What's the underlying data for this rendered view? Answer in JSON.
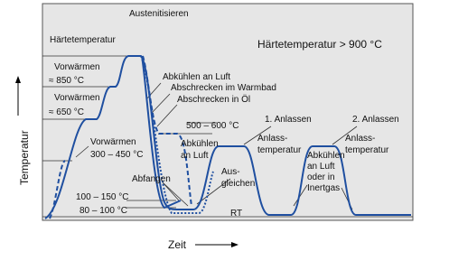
{
  "title": "Härtetemperatur > 900 °C",
  "axes": {
    "y": "Temperatur",
    "x": "Zeit"
  },
  "labels": [
    "Austenitisieren",
    "Härtetemperatur",
    "Vorwärmen",
    "≈ 850 °C",
    "Vorwärmen",
    "≈ 650 °C",
    "Vorwärmen",
    "300 – 450 °C",
    "Abkühlen an Luft",
    "Abschrecken im Warmbad",
    "Abschrecken in Öl",
    "500 – 600 °C",
    "Abkühlen",
    "an Luft",
    "1. Anlassen",
    "2. Anlassen",
    "Anlass-",
    "temperatur",
    "Anlass-",
    "temperatur",
    "Abfangen",
    "Aus-",
    "gleichen",
    "100 – 150 °C",
    "80 – 100 °C",
    "RT",
    "Abkühlen",
    "an Luft",
    "oder in",
    "Inertgas"
  ]
}
